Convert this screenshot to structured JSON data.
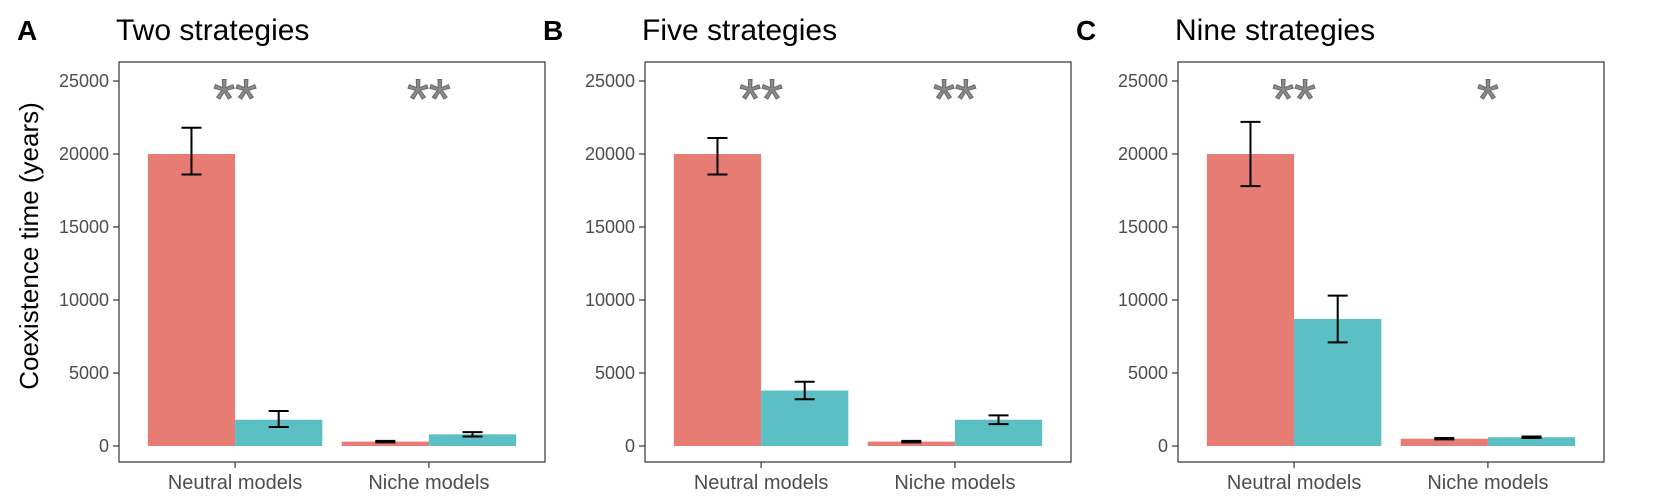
{
  "colors": {
    "red": "#E67C73",
    "teal": "#5BBFC4",
    "error": "#000000",
    "sig": "#8a8a8a"
  },
  "ylabel": "Coexistence time (years)",
  "chart_data": [
    {
      "type": "bar",
      "letter": "A",
      "title": "Two strategies",
      "categories": [
        "Neutral models",
        "Niche models"
      ],
      "ylim": [
        0,
        25000
      ],
      "yticks": [
        0,
        5000,
        10000,
        15000,
        20000,
        25000
      ],
      "series": [
        {
          "color": "#E67C73",
          "values": [
            20000,
            300
          ],
          "err_low": [
            18600,
            250
          ],
          "err_high": [
            21800,
            350
          ]
        },
        {
          "color": "#5BBFC4",
          "values": [
            1800,
            800
          ],
          "err_low": [
            1300,
            650
          ],
          "err_high": [
            2400,
            950
          ]
        }
      ],
      "significance": [
        "**",
        "**"
      ]
    },
    {
      "type": "bar",
      "letter": "B",
      "title": "Five strategies",
      "categories": [
        "Neutral models",
        "Niche models"
      ],
      "ylim": [
        0,
        25000
      ],
      "yticks": [
        0,
        5000,
        10000,
        15000,
        20000,
        25000
      ],
      "series": [
        {
          "color": "#E67C73",
          "values": [
            20000,
            300
          ],
          "err_low": [
            18600,
            250
          ],
          "err_high": [
            21100,
            350
          ]
        },
        {
          "color": "#5BBFC4",
          "values": [
            3800,
            1800
          ],
          "err_low": [
            3200,
            1500
          ],
          "err_high": [
            4400,
            2100
          ]
        }
      ],
      "significance": [
        "**",
        "**"
      ]
    },
    {
      "type": "bar",
      "letter": "C",
      "title": "Nine strategies",
      "categories": [
        "Neutral models",
        "Niche models"
      ],
      "ylim": [
        0,
        25000
      ],
      "yticks": [
        0,
        5000,
        10000,
        15000,
        20000,
        25000
      ],
      "series": [
        {
          "color": "#E67C73",
          "values": [
            20000,
            500
          ],
          "err_low": [
            17800,
            450
          ],
          "err_high": [
            22200,
            550
          ]
        },
        {
          "color": "#5BBFC4",
          "values": [
            8700,
            600
          ],
          "err_low": [
            7100,
            550
          ],
          "err_high": [
            10300,
            650
          ]
        }
      ],
      "significance": [
        "**",
        "*"
      ]
    }
  ]
}
